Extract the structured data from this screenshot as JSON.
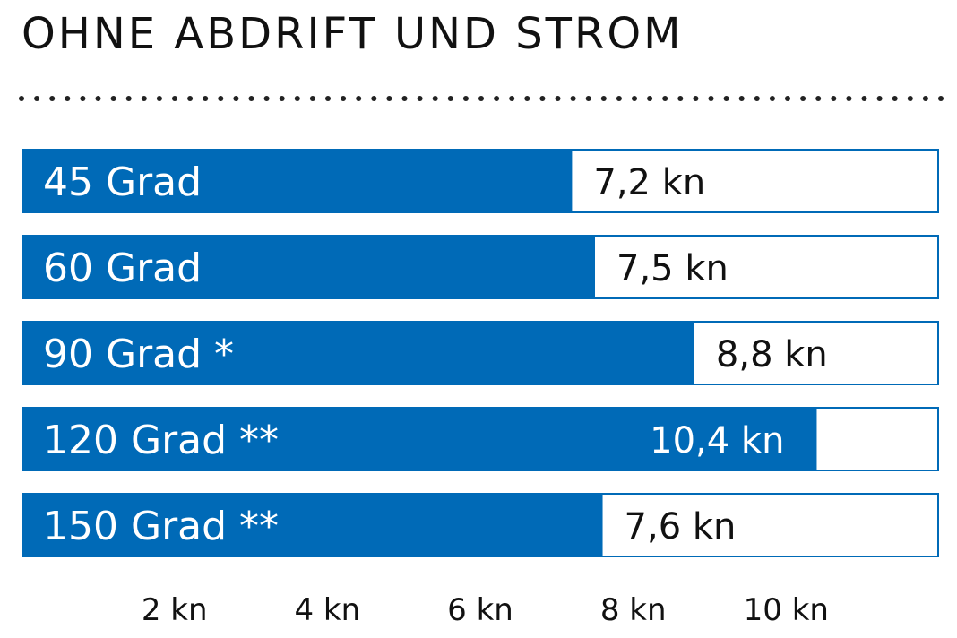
{
  "chart_data": {
    "type": "bar",
    "orientation": "horizontal",
    "title": "OHNE ABDRIFT UND STROM",
    "categories": [
      "45 Grad",
      "60 Grad",
      "90 Grad *",
      "120 Grad **",
      "150 Grad **"
    ],
    "values": [
      7.2,
      7.5,
      8.8,
      10.4,
      7.6
    ],
    "value_labels": [
      "7,2 kn",
      "7,5 kn",
      "8,8 kn",
      "10,4 kn",
      "7,6 kn"
    ],
    "x_ticks": [
      2,
      4,
      6,
      8,
      10
    ],
    "x_tick_labels": [
      "2 kn",
      "4 kn",
      "6 kn",
      "8 kn",
      "10 kn"
    ],
    "xlim": [
      0,
      12
    ],
    "xlabel": "",
    "ylabel": "",
    "grid": false,
    "bar_color": "#006ab7",
    "bar_border_color": "#006ab7",
    "background_color": "#ffffff",
    "category_text_color": "#ffffff",
    "value_text_color": "#111111"
  }
}
